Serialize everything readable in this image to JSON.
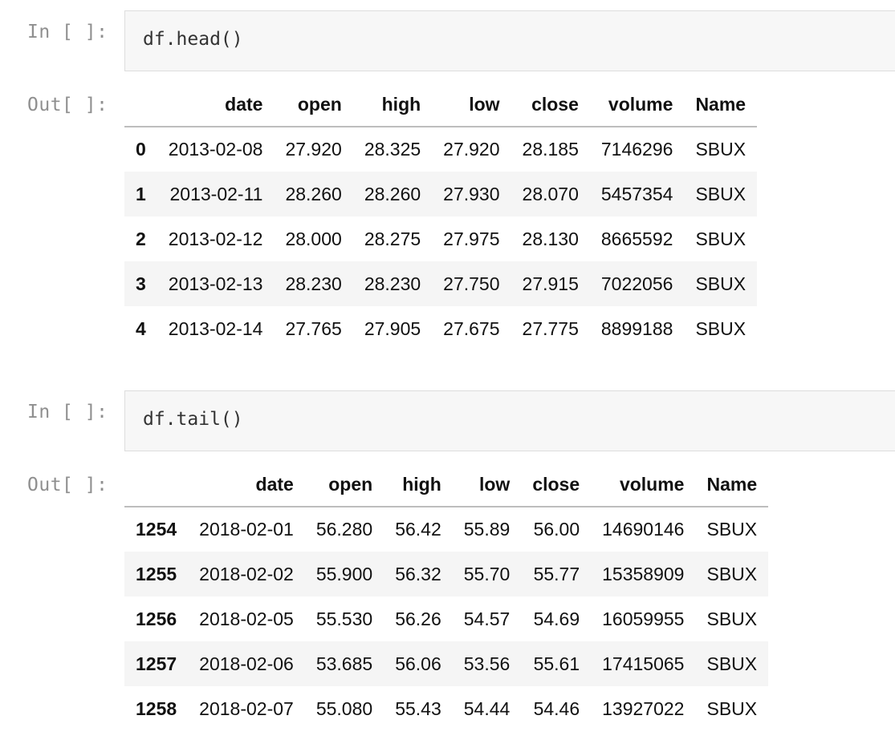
{
  "cells": [
    {
      "input_prompt": "In [ ]:",
      "code": "df.head()",
      "output_prompt": "Out[ ]:",
      "table": {
        "columns": [
          "",
          "date",
          "open",
          "high",
          "low",
          "close",
          "volume",
          "Name"
        ],
        "rows": [
          {
            "index": "0",
            "date": "2013-02-08",
            "open": "27.920",
            "high": "28.325",
            "low": "27.920",
            "close": "28.185",
            "volume": "7146296",
            "name": "SBUX"
          },
          {
            "index": "1",
            "date": "2013-02-11",
            "open": "28.260",
            "high": "28.260",
            "low": "27.930",
            "close": "28.070",
            "volume": "5457354",
            "name": "SBUX"
          },
          {
            "index": "2",
            "date": "2013-02-12",
            "open": "28.000",
            "high": "28.275",
            "low": "27.975",
            "close": "28.130",
            "volume": "8665592",
            "name": "SBUX"
          },
          {
            "index": "3",
            "date": "2013-02-13",
            "open": "28.230",
            "high": "28.230",
            "low": "27.750",
            "close": "27.915",
            "volume": "7022056",
            "name": "SBUX"
          },
          {
            "index": "4",
            "date": "2013-02-14",
            "open": "27.765",
            "high": "27.905",
            "low": "27.675",
            "close": "27.775",
            "volume": "8899188",
            "name": "SBUX"
          }
        ]
      }
    },
    {
      "input_prompt": "In [ ]:",
      "code": "df.tail()",
      "output_prompt": "Out[ ]:",
      "table": {
        "columns": [
          "",
          "date",
          "open",
          "high",
          "low",
          "close",
          "volume",
          "Name"
        ],
        "rows": [
          {
            "index": "1254",
            "date": "2018-02-01",
            "open": "56.280",
            "high": "56.42",
            "low": "55.89",
            "close": "56.00",
            "volume": "14690146",
            "name": "SBUX"
          },
          {
            "index": "1255",
            "date": "2018-02-02",
            "open": "55.900",
            "high": "56.32",
            "low": "55.70",
            "close": "55.77",
            "volume": "15358909",
            "name": "SBUX"
          },
          {
            "index": "1256",
            "date": "2018-02-05",
            "open": "55.530",
            "high": "56.26",
            "low": "54.57",
            "close": "54.69",
            "volume": "16059955",
            "name": "SBUX"
          },
          {
            "index": "1257",
            "date": "2018-02-06",
            "open": "53.685",
            "high": "56.06",
            "low": "53.56",
            "close": "55.61",
            "volume": "17415065",
            "name": "SBUX"
          },
          {
            "index": "1258",
            "date": "2018-02-07",
            "open": "55.080",
            "high": "55.43",
            "low": "54.44",
            "close": "54.46",
            "volume": "13927022",
            "name": "SBUX"
          }
        ]
      }
    }
  ]
}
